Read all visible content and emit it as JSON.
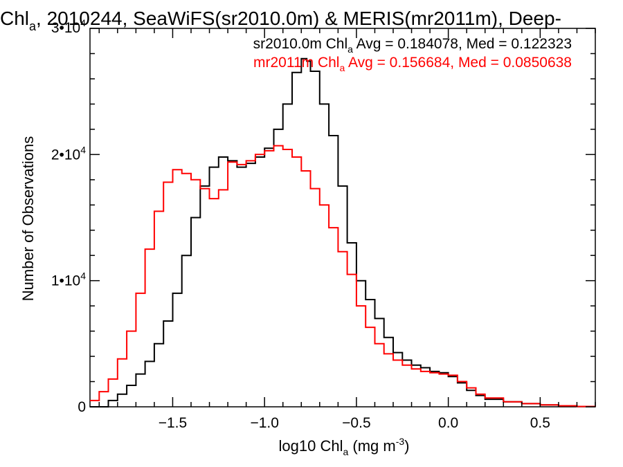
{
  "title": {
    "prefix": "Chl",
    "sub": "a",
    "rest": ", 2010244, SeaWiFS(sr2010.0m) & MERIS(mr2011m), Deep-"
  },
  "ylabel": "Number of Observations",
  "xlabel": {
    "prefix": "log10 Chl",
    "sub": "a",
    "mid": " (mg m",
    "sup": "-3",
    "suffix": ")"
  },
  "legend": [
    {
      "name": "sr2010.0m",
      "prefix": "sr2010.0m Chl",
      "sub": "a",
      "rest": " Avg = 0.184078, Med = 0.122323",
      "color": "#000000"
    },
    {
      "name": "mr2011m",
      "prefix": "mr2011m Chl",
      "sub": "a",
      "rest": " Avg = 0.156684, Med = 0.0850638",
      "color": "#ff0000"
    }
  ],
  "chart_data": {
    "type": "line",
    "step": true,
    "xlim": [
      -1.95,
      0.8
    ],
    "ylim": [
      0,
      30000
    ],
    "xticks": [
      {
        "value": -1.5,
        "label": "−1.5"
      },
      {
        "value": -1.0,
        "label": "−1.0"
      },
      {
        "value": -0.5,
        "label": "−0.5"
      },
      {
        "value": 0.0,
        "label": "0.0"
      },
      {
        "value": 0.5,
        "label": "0.5"
      }
    ],
    "yticks": [
      {
        "value": 0,
        "base": "0",
        "exp": ""
      },
      {
        "value": 10000,
        "base": "1•10",
        "exp": "4"
      },
      {
        "value": 20000,
        "base": "2•10",
        "exp": "4"
      },
      {
        "value": 30000,
        "base": "3•10",
        "exp": "4"
      }
    ],
    "series": [
      {
        "name": "sr2010.0m",
        "color": "#000000",
        "x": [
          -1.95,
          -1.85,
          -1.8,
          -1.75,
          -1.7,
          -1.65,
          -1.6,
          -1.55,
          -1.5,
          -1.45,
          -1.4,
          -1.35,
          -1.3,
          -1.25,
          -1.2,
          -1.15,
          -1.1,
          -1.05,
          -1.0,
          -0.95,
          -0.9,
          -0.85,
          -0.8,
          -0.77,
          -0.75,
          -0.7,
          -0.65,
          -0.6,
          -0.55,
          -0.5,
          -0.45,
          -0.4,
          -0.35,
          -0.3,
          -0.25,
          -0.2,
          -0.15,
          -0.1,
          -0.05,
          0.0,
          0.05,
          0.1,
          0.15,
          0.2,
          0.3,
          0.4,
          0.5,
          0.6,
          0.7,
          0.8
        ],
        "y": [
          0,
          500,
          1000,
          1700,
          2600,
          3600,
          5000,
          6800,
          9000,
          12000,
          15000,
          17500,
          19000,
          19800,
          19500,
          19000,
          19300,
          19800,
          20500,
          22000,
          24000,
          26500,
          27600,
          27400,
          26600,
          24000,
          21500,
          17500,
          13000,
          10000,
          8500,
          7000,
          5500,
          4300,
          3700,
          3300,
          3100,
          2800,
          2700,
          2400,
          1900,
          1300,
          900,
          600,
          400,
          250,
          150,
          80,
          30,
          0
        ]
      },
      {
        "name": "mr2011m",
        "color": "#ff0000",
        "x": [
          -1.95,
          -1.9,
          -1.85,
          -1.8,
          -1.75,
          -1.7,
          -1.65,
          -1.6,
          -1.55,
          -1.5,
          -1.47,
          -1.45,
          -1.4,
          -1.35,
          -1.3,
          -1.25,
          -1.2,
          -1.15,
          -1.1,
          -1.05,
          -1.0,
          -0.95,
          -0.9,
          -0.85,
          -0.8,
          -0.75,
          -0.7,
          -0.65,
          -0.6,
          -0.55,
          -0.5,
          -0.45,
          -0.4,
          -0.35,
          -0.3,
          -0.25,
          -0.2,
          -0.15,
          -0.1,
          -0.05,
          0.0,
          0.05,
          0.1,
          0.15,
          0.2,
          0.3,
          0.4,
          0.5,
          0.6,
          0.7,
          0.8
        ],
        "y": [
          500,
          1200,
          2200,
          3800,
          6000,
          9000,
          12500,
          15500,
          17800,
          18800,
          18800,
          18500,
          18000,
          17300,
          16500,
          17200,
          19400,
          19200,
          19500,
          20000,
          20300,
          20700,
          20400,
          19800,
          18700,
          17300,
          16000,
          14200,
          12300,
          10500,
          8000,
          6300,
          5000,
          4200,
          3700,
          3300,
          3000,
          2800,
          2700,
          2600,
          2500,
          2000,
          1500,
          1000,
          700,
          400,
          250,
          150,
          80,
          30,
          0
        ]
      }
    ]
  }
}
